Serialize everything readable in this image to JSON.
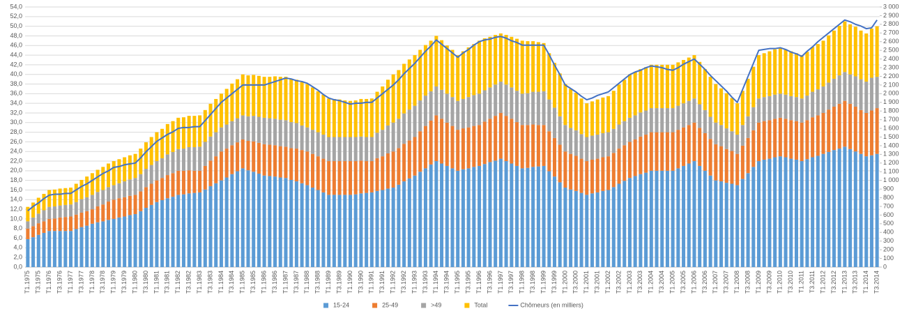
{
  "chart_data": {
    "type": "bar",
    "stacked": true,
    "grid": true,
    "legend": "bottom",
    "categories": [
      "T1.1975",
      null,
      "T3.1975",
      null,
      "T1.1976",
      null,
      "T3.1976",
      null,
      "T1.1977",
      null,
      "T3.1977",
      null,
      "T1.1978",
      null,
      "T3.1978",
      null,
      "T1.1979",
      null,
      "T3.1979",
      null,
      "T1.1980",
      null,
      "T3.1980",
      null,
      "T1.1981",
      null,
      "T3.1981",
      null,
      "T1.1982",
      null,
      "T3.1982",
      null,
      "T1.1983",
      null,
      "T3.1983",
      null,
      "T1.1984",
      null,
      "T3.1984",
      null,
      "T1.1985",
      null,
      "T3.1985",
      null,
      "T1.1986",
      null,
      "T3.1986",
      null,
      "T1.1987",
      null,
      "T3.1987",
      null,
      "T1.1988",
      null,
      "T3.1988",
      null,
      "T1.1989",
      null,
      "T3.1989",
      null,
      "T1.1990",
      null,
      "T3.1990",
      null,
      "T1.1991",
      null,
      "T3.1991",
      null,
      "T1.1992",
      null,
      "T3.1992",
      null,
      "T1.1993",
      null,
      "T3.1993",
      null,
      "T1.1994",
      null,
      "T3.1994",
      null,
      "T1.1995",
      null,
      "T3.1995",
      null,
      "T1.1996",
      null,
      "T3.1996",
      null,
      "T1.1997",
      null,
      "T3.1997",
      null,
      "T1.1998",
      null,
      "T3.1998",
      null,
      "T1.1999",
      null,
      "T3.1999",
      null,
      "T1.2000",
      null,
      "T3.2000",
      null,
      "T1.2001",
      null,
      "T3.2001",
      null,
      "T1.2002",
      null,
      "T3.2002",
      null,
      "T1.2003",
      null,
      "T3.2003",
      null,
      "T1.2004",
      null,
      "T3.2004",
      null,
      "T1.2005",
      null,
      "T3.2005",
      null,
      "T1.2006",
      null,
      "T3.2006",
      null,
      "T1.2007",
      null,
      "T3.2007",
      null,
      "T1.2008",
      null,
      "T3.2008",
      null,
      "T1.2009",
      null,
      "T3.2009",
      null,
      "T1.2010",
      null,
      "T3.2010",
      null,
      "T1.2011",
      null,
      "T3.2011",
      null,
      "T1.2012",
      null,
      "T3.2012",
      null,
      "T1.2013",
      null,
      "T3.2013",
      null,
      "T1.2014",
      null,
      "T3.2014"
    ],
    "series": [
      {
        "name": "15-24",
        "color": "#5b9bd5",
        "values": [
          5.8,
          6.2,
          6.7,
          7.1,
          7.5,
          7.5,
          7.5,
          7.5,
          7.5,
          7.9,
          8.3,
          8.6,
          9.0,
          9.3,
          9.5,
          9.8,
          10.0,
          10.3,
          10.5,
          10.8,
          11.0,
          11.6,
          12.3,
          12.9,
          13.5,
          13.9,
          14.3,
          14.6,
          15.0,
          15.1,
          15.3,
          15.4,
          15.5,
          16.1,
          16.8,
          17.4,
          18.0,
          18.6,
          19.3,
          19.9,
          20.5,
          20.1,
          19.8,
          19.4,
          19.0,
          18.9,
          18.8,
          18.6,
          18.5,
          18.1,
          17.8,
          17.4,
          17.0,
          16.5,
          16.0,
          15.5,
          15.0,
          15.0,
          15.0,
          15.0,
          15.0,
          15.1,
          15.3,
          15.4,
          15.5,
          15.8,
          16.0,
          16.3,
          16.5,
          17.1,
          17.8,
          18.4,
          19.0,
          19.8,
          20.5,
          21.3,
          22.0,
          21.5,
          21.0,
          20.5,
          20.0,
          20.3,
          20.5,
          20.8,
          21.0,
          21.4,
          21.8,
          22.1,
          22.5,
          22.0,
          21.5,
          21.0,
          20.5,
          20.6,
          20.8,
          20.9,
          21.0,
          19.9,
          18.8,
          17.6,
          16.5,
          16.1,
          15.8,
          15.4,
          15.0,
          15.3,
          15.5,
          15.8,
          16.0,
          16.6,
          17.3,
          17.9,
          18.5,
          18.9,
          19.3,
          19.6,
          20.0,
          20.0,
          20.0,
          20.0,
          20.0,
          20.5,
          21.0,
          21.5,
          22.0,
          21.0,
          20.0,
          19.0,
          18.0,
          17.8,
          17.5,
          17.3,
          17.0,
          18.3,
          19.5,
          20.8,
          22.0,
          22.3,
          22.5,
          22.8,
          23.0,
          22.8,
          22.5,
          22.3,
          22.0,
          22.4,
          22.8,
          23.1,
          23.5,
          23.9,
          24.3,
          24.6,
          25.0,
          24.5,
          24.0,
          23.5,
          23.0,
          23.2,
          23.5
        ]
      },
      {
        "name": "25-49",
        "color": "#ed7d31",
        "values": [
          2.2,
          2.3,
          2.4,
          2.4,
          2.5,
          2.6,
          2.8,
          2.9,
          3.0,
          3.0,
          3.0,
          3.0,
          3.0,
          3.3,
          3.5,
          3.8,
          4.0,
          4.0,
          4.0,
          4.0,
          4.0,
          4.1,
          4.3,
          4.4,
          4.5,
          4.6,
          4.8,
          4.9,
          5.0,
          4.9,
          4.8,
          4.6,
          4.5,
          4.9,
          5.3,
          5.6,
          6.0,
          6.0,
          6.0,
          6.0,
          6.0,
          6.1,
          6.3,
          6.4,
          6.5,
          6.5,
          6.5,
          6.5,
          6.5,
          6.6,
          6.8,
          6.9,
          7.0,
          7.0,
          7.0,
          7.0,
          7.0,
          7.0,
          7.0,
          7.0,
          7.0,
          6.9,
          6.8,
          6.6,
          6.5,
          6.8,
          7.0,
          7.3,
          7.5,
          7.6,
          7.8,
          7.9,
          8.0,
          8.4,
          8.8,
          9.1,
          9.5,
          9.3,
          9.0,
          8.8,
          8.5,
          8.5,
          8.5,
          8.5,
          8.5,
          8.8,
          9.0,
          9.3,
          9.5,
          9.4,
          9.3,
          9.1,
          9.0,
          8.9,
          8.8,
          8.6,
          8.5,
          8.3,
          8.0,
          7.8,
          7.5,
          7.4,
          7.3,
          7.1,
          7.0,
          7.0,
          7.0,
          7.0,
          7.0,
          7.1,
          7.3,
          7.4,
          7.5,
          7.6,
          7.8,
          7.9,
          8.0,
          8.0,
          8.0,
          8.0,
          8.0,
          8.0,
          8.0,
          8.0,
          8.0,
          7.9,
          7.8,
          7.6,
          7.5,
          7.3,
          7.0,
          6.8,
          6.5,
          6.9,
          7.3,
          7.6,
          8.0,
          8.0,
          8.0,
          8.0,
          8.0,
          8.0,
          8.0,
          8.0,
          8.0,
          8.1,
          8.3,
          8.4,
          8.5,
          8.8,
          9.0,
          9.3,
          9.5,
          9.4,
          9.3,
          9.1,
          9.0,
          9.3,
          9.5
        ]
      },
      {
        "name": ">49",
        "color": "#a5a5a5",
        "values": [
          1.5,
          1.8,
          2.0,
          2.3,
          2.5,
          2.5,
          2.5,
          2.5,
          2.5,
          2.6,
          2.8,
          2.9,
          3.0,
          3.0,
          3.0,
          3.0,
          3.0,
          3.1,
          3.3,
          3.4,
          3.5,
          3.6,
          3.8,
          3.9,
          4.0,
          4.1,
          4.3,
          4.4,
          4.5,
          4.6,
          4.8,
          4.9,
          5.0,
          5.0,
          5.0,
          5.0,
          5.0,
          5.0,
          5.0,
          5.0,
          5.0,
          5.1,
          5.3,
          5.4,
          5.5,
          5.5,
          5.5,
          5.5,
          5.5,
          5.4,
          5.3,
          5.1,
          5.0,
          5.0,
          5.0,
          5.0,
          5.0,
          5.0,
          5.0,
          5.0,
          5.0,
          5.0,
          5.0,
          5.0,
          5.0,
          5.3,
          5.5,
          5.8,
          6.0,
          6.1,
          6.3,
          6.4,
          6.5,
          6.4,
          6.3,
          6.1,
          6.0,
          6.0,
          6.0,
          6.0,
          6.0,
          6.1,
          6.3,
          6.4,
          6.5,
          6.5,
          6.5,
          6.5,
          6.5,
          6.5,
          6.5,
          6.5,
          6.5,
          6.6,
          6.8,
          6.9,
          7.0,
          6.6,
          6.3,
          5.9,
          5.5,
          5.4,
          5.3,
          5.1,
          5.0,
          5.0,
          5.0,
          5.0,
          5.0,
          5.0,
          5.0,
          5.0,
          5.0,
          5.0,
          5.0,
          5.0,
          5.0,
          5.0,
          5.0,
          5.0,
          5.0,
          5.0,
          5.0,
          5.0,
          5.0,
          4.9,
          4.8,
          4.6,
          4.5,
          4.4,
          4.3,
          4.1,
          4.0,
          4.3,
          4.5,
          4.8,
          5.0,
          5.0,
          5.0,
          5.0,
          5.0,
          5.0,
          5.0,
          5.0,
          5.0,
          5.1,
          5.3,
          5.4,
          5.5,
          5.6,
          5.8,
          5.9,
          6.0,
          6.1,
          6.3,
          6.4,
          6.5,
          6.8,
          6.5
        ]
      },
      {
        "name": "Total",
        "color": "#ffc000",
        "values": [
          3.0,
          3.1,
          3.3,
          3.4,
          3.5,
          3.5,
          3.5,
          3.5,
          3.5,
          3.8,
          4.0,
          4.3,
          4.5,
          4.6,
          4.8,
          4.9,
          5.0,
          5.0,
          5.0,
          5.0,
          5.0,
          5.3,
          5.5,
          5.8,
          6.0,
          6.1,
          6.3,
          6.4,
          6.5,
          6.5,
          6.5,
          6.5,
          6.5,
          6.6,
          6.8,
          6.9,
          7.0,
          7.4,
          7.8,
          8.1,
          8.5,
          8.5,
          8.5,
          8.5,
          8.5,
          8.6,
          8.8,
          8.9,
          9.0,
          9.0,
          9.0,
          9.0,
          9.0,
          8.8,
          8.5,
          8.3,
          8.0,
          7.9,
          7.8,
          7.6,
          7.5,
          7.6,
          7.8,
          7.9,
          8.0,
          8.5,
          9.0,
          9.5,
          10.0,
          10.1,
          10.3,
          10.4,
          10.5,
          10.5,
          10.5,
          10.5,
          10.5,
          10.3,
          10.0,
          9.8,
          9.5,
          9.9,
          10.3,
          10.6,
          11.0,
          10.8,
          10.5,
          10.3,
          10.0,
          10.3,
          10.5,
          10.8,
          11.0,
          10.8,
          10.5,
          10.3,
          10.0,
          9.6,
          9.3,
          8.9,
          8.5,
          8.1,
          7.8,
          7.4,
          7.0,
          7.1,
          7.3,
          7.4,
          7.5,
          7.9,
          8.3,
          8.6,
          9.0,
          9.0,
          9.0,
          9.0,
          9.0,
          9.0,
          9.0,
          9.0,
          9.0,
          9.0,
          9.0,
          9.0,
          9.0,
          8.8,
          8.5,
          8.3,
          8.0,
          7.6,
          7.3,
          6.9,
          6.5,
          7.1,
          7.8,
          8.4,
          9.0,
          9.1,
          9.3,
          9.4,
          9.5,
          9.4,
          9.3,
          9.1,
          9.0,
          9.1,
          9.3,
          9.4,
          9.5,
          9.8,
          10.0,
          10.3,
          10.5,
          10.4,
          10.3,
          10.1,
          10.0,
          10.2,
          10.5
        ]
      },
      {
        "name": "Chômeurs (en milliers)",
        "color": "#4472c4",
        "type": "line",
        "axis": "y2",
        "values": [
          650,
          700,
          740,
          790,
          830,
          840,
          840,
          850,
          850,
          890,
          930,
          960,
          1000,
          1040,
          1080,
          1110,
          1150,
          1160,
          1180,
          1190,
          1200,
          1260,
          1330,
          1390,
          1450,
          1490,
          1530,
          1560,
          1600,
          1610,
          1610,
          1620,
          1620,
          1690,
          1760,
          1830,
          1900,
          1950,
          2000,
          2050,
          2100,
          2100,
          2100,
          2100,
          2100,
          2120,
          2140,
          2160,
          2180,
          2170,
          2150,
          2140,
          2120,
          2080,
          2040,
          1990,
          1950,
          1930,
          1920,
          1900,
          1880,
          1890,
          1890,
          1900,
          1900,
          1950,
          2000,
          2050,
          2100,
          2160,
          2230,
          2290,
          2350,
          2420,
          2490,
          2550,
          2620,
          2570,
          2520,
          2470,
          2420,
          2470,
          2510,
          2560,
          2600,
          2620,
          2630,
          2650,
          2660,
          2640,
          2610,
          2590,
          2560,
          2560,
          2560,
          2560,
          2560,
          2450,
          2330,
          2220,
          2100,
          2060,
          2020,
          1970,
          1930,
          1950,
          1980,
          2000,
          2020,
          2070,
          2120,
          2170,
          2220,
          2250,
          2270,
          2300,
          2320,
          2310,
          2300,
          2280,
          2270,
          2300,
          2340,
          2370,
          2400,
          2340,
          2280,
          2210,
          2150,
          2090,
          2030,
          1960,
          1900,
          2050,
          2200,
          2350,
          2500,
          2510,
          2520,
          2520,
          2530,
          2510,
          2480,
          2460,
          2430,
          2490,
          2540,
          2600,
          2650,
          2700,
          2750,
          2800,
          2850,
          2830,
          2800,
          2780,
          2750,
          2760,
          2850
        ]
      }
    ],
    "ylim": [
      0,
      54
    ],
    "yticks": [
      {
        "value": 0,
        "label": "0,0"
      },
      {
        "value": 2,
        "label": "2,0"
      },
      {
        "value": 4,
        "label": "4,0"
      },
      {
        "value": 6,
        "label": "6,0"
      },
      {
        "value": 8,
        "label": "8,0"
      },
      {
        "value": 10,
        "label": "10,0"
      },
      {
        "value": 12,
        "label": "12,0"
      },
      {
        "value": 14,
        "label": "14,0"
      },
      {
        "value": 16,
        "label": "16,0"
      },
      {
        "value": 18,
        "label": "18,0"
      },
      {
        "value": 20,
        "label": "20,0"
      },
      {
        "value": 22,
        "label": "22,0"
      },
      {
        "value": 24,
        "label": "24,0"
      },
      {
        "value": 26,
        "label": "26,0"
      },
      {
        "value": 28,
        "label": "28,0"
      },
      {
        "value": 30,
        "label": "30,0"
      },
      {
        "value": 32,
        "label": "32,0"
      },
      {
        "value": 34,
        "label": "34,0"
      },
      {
        "value": 36,
        "label": "36,0"
      },
      {
        "value": 38,
        "label": "38,0"
      },
      {
        "value": 40,
        "label": "40,0"
      },
      {
        "value": 42,
        "label": "42,0"
      },
      {
        "value": 44,
        "label": "44,0"
      },
      {
        "value": 46,
        "label": "46,0"
      },
      {
        "value": 48,
        "label": "48,0"
      },
      {
        "value": 50,
        "label": "50,0"
      },
      {
        "value": 52,
        "label": "52,0"
      },
      {
        "value": 54,
        "label": "54,0"
      }
    ],
    "y2lim": [
      0,
      3000
    ],
    "y2ticks": [
      0,
      100,
      200,
      300,
      400,
      500,
      600,
      700,
      800,
      900,
      {
        "value": 1000,
        "label": "1 000"
      },
      {
        "value": 1100,
        "label": "1 100"
      },
      {
        "value": 1200,
        "label": "1 200"
      },
      {
        "value": 1300,
        "label": "1 300"
      },
      {
        "value": 1400,
        "label": "1 400"
      },
      {
        "value": 1500,
        "label": "1 500"
      },
      {
        "value": 1600,
        "label": "1 600"
      },
      {
        "value": 1700,
        "label": "1 700"
      },
      {
        "value": 1800,
        "label": "1 800"
      },
      {
        "value": 1900,
        "label": "1 900"
      },
      {
        "value": 2000,
        "label": "2 000"
      },
      {
        "value": 2100,
        "label": "2 100"
      },
      {
        "value": 2200,
        "label": "2 200"
      },
      {
        "value": 2300,
        "label": "2 300"
      },
      {
        "value": 2400,
        "label": "2 400"
      },
      {
        "value": 2500,
        "label": "2 500"
      },
      {
        "value": 2600,
        "label": "2 600"
      },
      {
        "value": 2700,
        "label": "2 700"
      },
      {
        "value": 2800,
        "label": "2 800"
      },
      {
        "value": 2900,
        "label": "2 900"
      },
      {
        "value": 3000,
        "label": "3 000"
      }
    ]
  }
}
